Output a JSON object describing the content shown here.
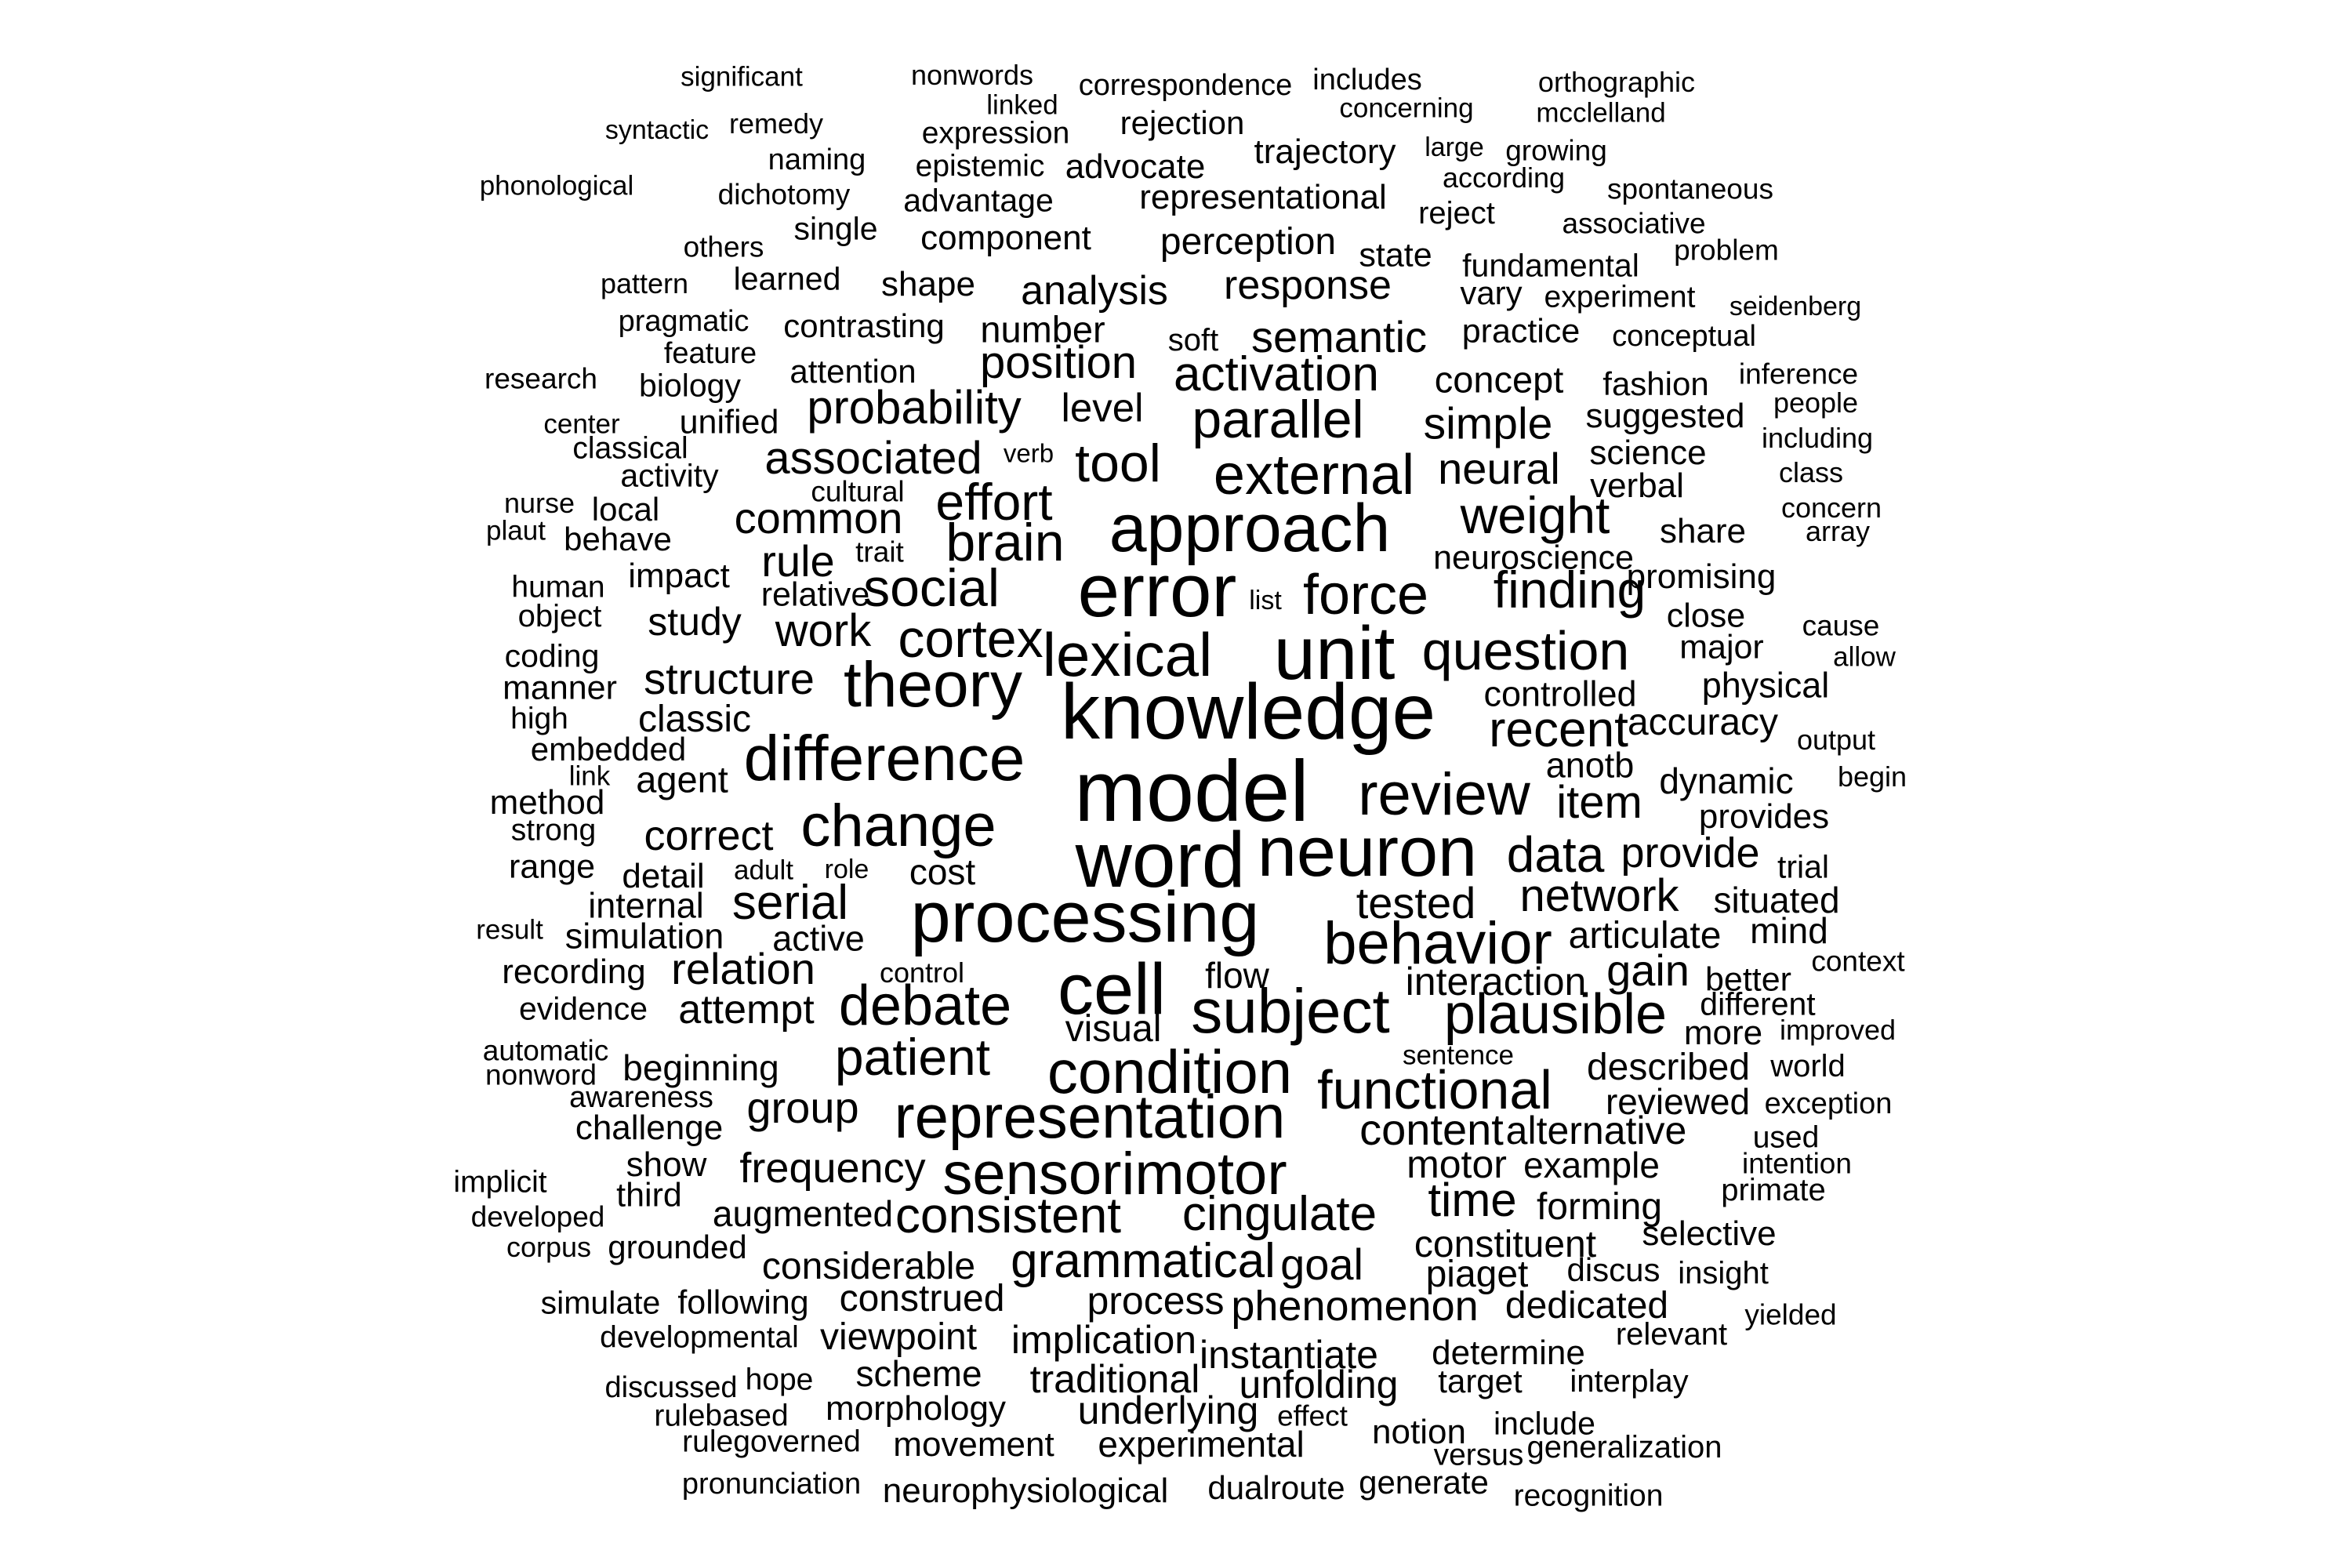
{
  "words": {
    "significant": "significant",
    "nonwords": "nonwords",
    "correspondence": "correspondence",
    "includes": "includes",
    "orthographic": "orthographic",
    "linked": "linked",
    "concerning": "concerning",
    "mcclelland": "mcclelland",
    "syntactic": "syntactic",
    "remedy": "remedy",
    "expression": "expression",
    "rejection": "rejection",
    "trajectory": "trajectory",
    "large": "large",
    "growing": "growing",
    "naming": "naming",
    "epistemic": "epistemic",
    "advocate": "advocate",
    "according": "according",
    "phonological": "phonological",
    "dichotomy": "dichotomy",
    "advantage": "advantage",
    "representational": "representational",
    "spontaneous": "spontaneous",
    "reject": "reject",
    "single": "single",
    "associative": "associative",
    "component": "component",
    "perception": "perception",
    "others": "others",
    "state": "state",
    "problem": "problem",
    "fundamental": "fundamental",
    "pattern": "pattern",
    "learned": "learned",
    "shape": "shape",
    "response": "response",
    "analysis": "analysis",
    "vary": "vary",
    "experiment": "experiment",
    "seidenberg": "seidenberg",
    "pragmatic": "pragmatic",
    "contrasting": "contrasting",
    "number": "number",
    "semantic": "semantic",
    "practice": "practice",
    "conceptual": "conceptual",
    "soft": "soft",
    "feature": "feature",
    "position": "position",
    "research": "research",
    "attention": "attention",
    "activation": "activation",
    "concept": "concept",
    "fashion": "fashion",
    "inference": "inference",
    "biology": "biology",
    "level": "level",
    "people": "people",
    "center": "center",
    "probability": "probability",
    "parallel": "parallel",
    "simple": "simple",
    "suggested": "suggested",
    "unified": "unified",
    "including": "including",
    "classical": "classical",
    "verb": "verb",
    "science": "science",
    "associated": "associated",
    "tool": "tool",
    "activity": "activity",
    "external": "external",
    "neural": "neural",
    "class": "class",
    "cultural": "cultural",
    "effort": "effort",
    "verbal": "verbal",
    "nurse": "nurse",
    "local": "local",
    "weight": "weight",
    "concern": "concern",
    "common": "common",
    "approach": "approach",
    "plaut": "plaut",
    "share": "share",
    "array": "array",
    "behave": "behave",
    "brain": "brain",
    "trait": "trait",
    "neuroscience": "neuroscience",
    "rule": "rule",
    "impact": "impact",
    "promising": "promising",
    "human": "human",
    "social": "social",
    "error": "error",
    "relative": "relative",
    "list": "list",
    "force": "force",
    "finding": "finding",
    "object": "object",
    "study": "study",
    "close": "close",
    "cause": "cause",
    "work": "work",
    "cortex": "cortex",
    "major": "major",
    "allow": "allow",
    "coding": "coding",
    "unit": "unit",
    "question": "question",
    "lexical": "lexical",
    "theory": "theory",
    "structure": "structure",
    "physical": "physical",
    "manner": "manner",
    "controlled": "controlled",
    "knowledge": "knowledge",
    "high": "high",
    "classic": "classic",
    "accuracy": "accuracy",
    "recent": "recent",
    "output": "output",
    "embedded": "embedded",
    "difference": "difference",
    "anotb": "anotb",
    "link": "link",
    "agent": "agent",
    "review": "review",
    "model": "model",
    "dynamic": "dynamic",
    "begin": "begin",
    "method": "method",
    "item": "item",
    "strong": "strong",
    "provides": "provides",
    "change": "change",
    "correct": "correct",
    "word": "word",
    "neuron": "neuron",
    "data": "data",
    "provide": "provide",
    "range": "range",
    "adult": "adult",
    "role": "role",
    "cost": "cost",
    "trial": "trial",
    "detail": "detail",
    "serial": "serial",
    "processing": "processing",
    "tested": "tested",
    "network": "network",
    "situated": "situated",
    "internal": "internal",
    "result": "result",
    "simulation": "simulation",
    "active": "active",
    "articulate": "articulate",
    "mind": "mind",
    "behavior": "behavior",
    "relation": "relation",
    "recording": "recording",
    "control": "control",
    "flow": "flow",
    "cell": "cell",
    "gain": "gain",
    "context": "context",
    "interaction": "interaction",
    "better": "better",
    "evidence": "evidence",
    "attempt": "attempt",
    "debate": "debate",
    "subject": "subject",
    "plausible": "plausible",
    "different": "different",
    "visual": "visual",
    "more": "more",
    "improved": "improved",
    "automatic": "automatic",
    "patient": "patient",
    "sentence": "sentence",
    "nonword": "nonword",
    "beginning": "beginning",
    "condition": "condition",
    "described": "described",
    "world": "world",
    "functional": "functional",
    "awareness": "awareness",
    "group": "group",
    "reviewed": "reviewed",
    "exception": "exception",
    "representation": "representation",
    "challenge": "challenge",
    "content": "content",
    "alternative": "alternative",
    "used": "used",
    "show": "show",
    "frequency": "frequency",
    "sensorimotor": "sensorimotor",
    "motor": "motor",
    "example": "example",
    "intention": "intention",
    "implicit": "implicit",
    "third": "third",
    "primate": "primate",
    "time": "time",
    "augmented": "augmented",
    "consistent": "consistent",
    "cingulate": "cingulate",
    "forming": "forming",
    "developed": "developed",
    "selective": "selective",
    "constituent": "constituent",
    "corpus": "corpus",
    "grounded": "grounded",
    "grammatical": "grammatical",
    "goal": "goal",
    "discus": "discus",
    "insight": "insight",
    "considerable": "considerable",
    "piaget": "piaget",
    "simulate": "simulate",
    "construed": "construed",
    "process": "process",
    "following": "following",
    "phenomenon": "phenomenon",
    "dedicated": "dedicated",
    "yielded": "yielded",
    "developmental": "developmental",
    "viewpoint": "viewpoint",
    "implication": "implication",
    "relevant": "relevant",
    "instantiate": "instantiate",
    "determine": "determine",
    "scheme": "scheme",
    "traditional": "traditional",
    "unfolding": "unfolding",
    "target": "target",
    "interplay": "interplay",
    "discussed": "discussed",
    "hope": "hope",
    "morphology": "morphology",
    "underlying": "underlying",
    "effect": "effect",
    "rulebased": "rulebased",
    "notion": "notion",
    "include": "include",
    "rulegoverned": "rulegoverned",
    "movement": "movement",
    "experimental": "experimental",
    "versus": "versus",
    "generalization": "generalization",
    "pronunciation": "pronunciation",
    "generate": "generate",
    "neurophysiological": "neurophysiological",
    "dualroute": "dualroute",
    "recognition": "recognition"
  }
}
